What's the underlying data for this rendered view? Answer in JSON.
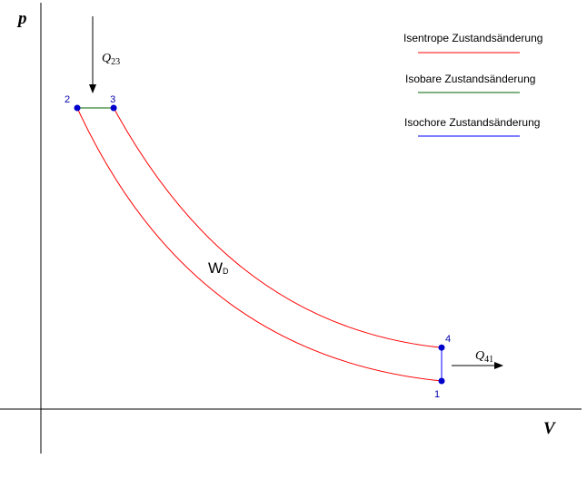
{
  "axes": {
    "x_label": "V",
    "y_label": "p"
  },
  "points": [
    {
      "id": "1",
      "label": "1",
      "v": 1.0,
      "p": 1.0
    },
    {
      "id": "2",
      "label": "2",
      "v": 0.0,
      "p": 10.0
    },
    {
      "id": "3",
      "label": "3",
      "v": 0.1,
      "p": 10.0
    },
    {
      "id": "4",
      "label": "4",
      "v": 1.0,
      "p": 2.1
    }
  ],
  "work": {
    "main": "W",
    "sub": "D"
  },
  "heat_in": {
    "symbol": "Q",
    "sub": "23"
  },
  "heat_out": {
    "symbol": "Q",
    "sub": "41"
  },
  "legend": [
    {
      "label": "Isentrope Zustandsänderung",
      "color": "#ff0000"
    },
    {
      "label": "Isobare Zustandsänderung",
      "color": "#006400"
    },
    {
      "label": "Isochore Zustandsänderung",
      "color": "#0000ff"
    }
  ],
  "colors": {
    "isentrope": "#ff0000",
    "isobare": "#006400",
    "isochore": "#0000ff",
    "point_fill": "#0000cc",
    "axis": "#000000"
  }
}
